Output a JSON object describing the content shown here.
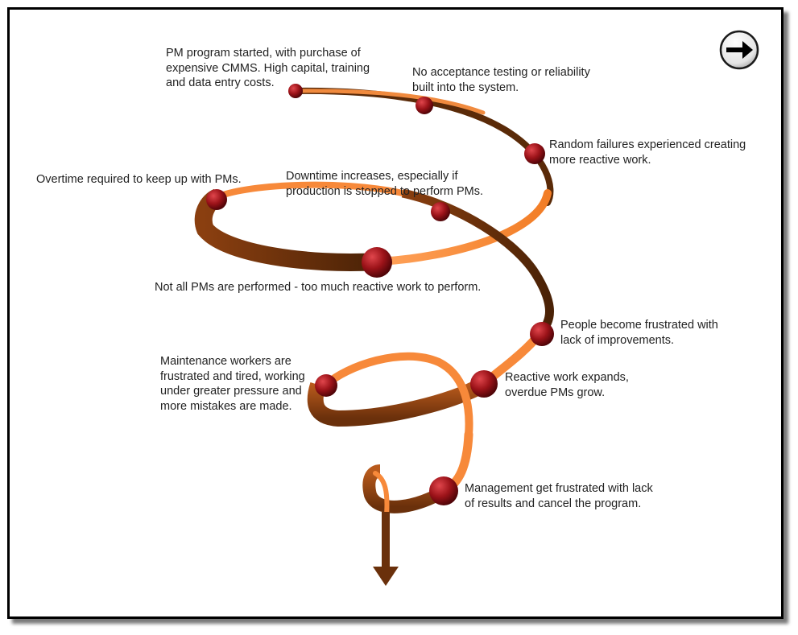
{
  "diagram": {
    "steps": [
      {
        "id": "s1",
        "lines": [
          "PM program started, with purchase of",
          "expensive CMMS. High capital, training",
          "and data entry costs."
        ]
      },
      {
        "id": "s2",
        "lines": [
          "No acceptance testing or reliability",
          "built into the system."
        ]
      },
      {
        "id": "s3",
        "lines": [
          "Random failures experienced creating",
          "more reactive work."
        ]
      },
      {
        "id": "s4",
        "lines": [
          "Downtime increases, especially if",
          "production is stopped to perform PMs."
        ]
      },
      {
        "id": "s5",
        "lines": [
          "Overtime required to keep up with PMs."
        ]
      },
      {
        "id": "s6",
        "lines": [
          "Not all PMs are performed - too much reactive work to perform."
        ]
      },
      {
        "id": "s7",
        "lines": [
          "People become frustrated with",
          "lack of improvements."
        ]
      },
      {
        "id": "s8",
        "lines": [
          "Reactive work expands,",
          "overdue PMs grow."
        ]
      },
      {
        "id": "s9",
        "lines": [
          "Maintenance workers are",
          "frustrated and tired, working",
          "under greater pressure and",
          "more mistakes are made."
        ]
      },
      {
        "id": "s10",
        "lines": [
          "Management get frustrated with lack",
          "of results and cancel the program."
        ]
      }
    ]
  },
  "nav": {
    "next_icon": "arrow-right-icon"
  },
  "colors": {
    "ribbon_light": "#f7893a",
    "ribbon_dark": "#5a2a08",
    "node": "#8e0f14",
    "arrow": "#6a300b"
  }
}
